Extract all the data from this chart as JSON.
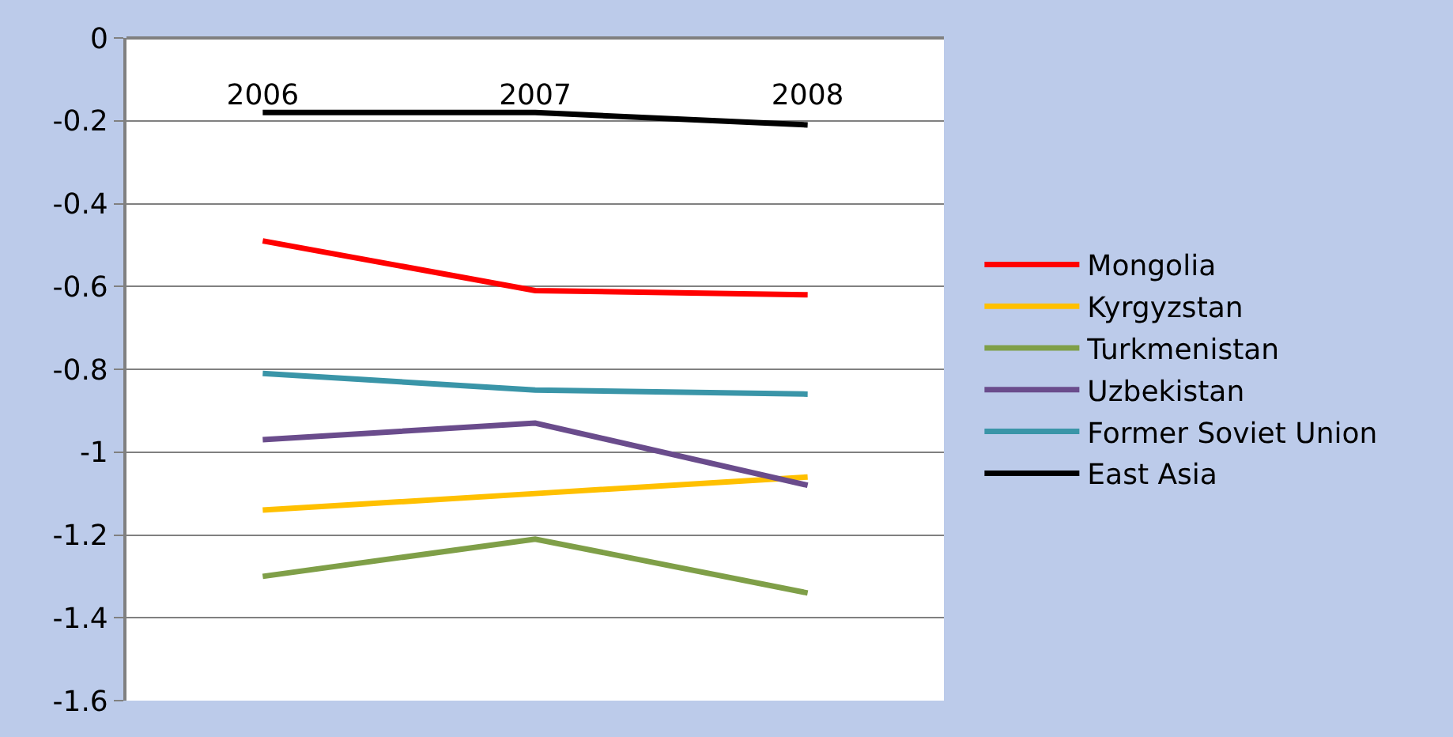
{
  "chart_data": {
    "type": "line",
    "categories": [
      "2006",
      "2007",
      "2008"
    ],
    "series": [
      {
        "name": "Mongolia",
        "color": "#ff0000",
        "values": [
          -0.49,
          -0.61,
          -0.62
        ]
      },
      {
        "name": "Kyrgyzstan",
        "color": "#ffc000",
        "values": [
          -1.14,
          -1.1,
          -1.06
        ]
      },
      {
        "name": "Turkmenistan",
        "color": "#7f9f48",
        "values": [
          -1.3,
          -1.21,
          -1.34
        ]
      },
      {
        "name": "Uzbekistan",
        "color": "#6a4c8c",
        "values": [
          -0.97,
          -0.93,
          -1.08
        ]
      },
      {
        "name": "Former Soviet Union",
        "color": "#3a95a8",
        "values": [
          -0.81,
          -0.85,
          -0.86
        ]
      },
      {
        "name": "East Asia",
        "color": "#000000",
        "values": [
          -0.18,
          -0.18,
          -0.21
        ]
      }
    ],
    "ylim": [
      -1.6,
      0
    ],
    "yticks": [
      0,
      -0.2,
      -0.4,
      -0.6,
      -0.8,
      -1,
      -1.2,
      -1.4,
      -1.6
    ],
    "grid": "y",
    "legend": "right",
    "marker": "none",
    "line_style": "solid"
  }
}
